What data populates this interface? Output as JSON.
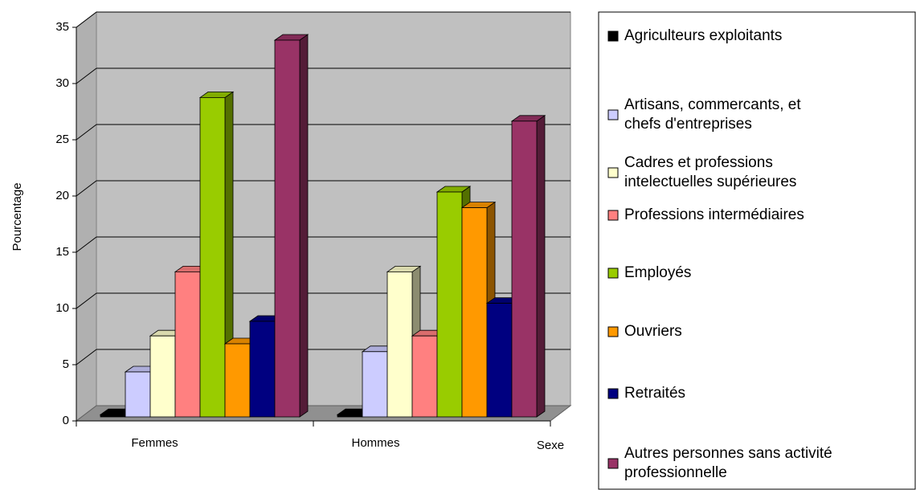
{
  "chart_data": {
    "type": "bar3d",
    "categories": [
      "Femmes",
      "Hommes"
    ],
    "x_label": "Sexe",
    "y_label": "Pourcentage",
    "ylim": [
      0,
      35
    ],
    "yticks": [
      0,
      5,
      10,
      15,
      20,
      25,
      30,
      35
    ],
    "grid": true,
    "legend": "right",
    "series": [
      {
        "name": "Agriculteurs exploitants",
        "color": "#000000",
        "values": [
          0.2,
          0.2
        ]
      },
      {
        "name": "Artisans, commercants, et chefs d'entreprises",
        "color": "#ccccff",
        "values": [
          4,
          5.8
        ]
      },
      {
        "name": "Cadres et professions intelectuelles supérieures",
        "color": "#ffffcc",
        "values": [
          7.2,
          12.9
        ]
      },
      {
        "name": "Professions intermédiaires",
        "color": "#ff8080",
        "values": [
          12.9,
          7.2
        ]
      },
      {
        "name": "Employés",
        "color": "#99cc00",
        "values": [
          28.4,
          20
        ]
      },
      {
        "name": "Ouvriers",
        "color": "#ff9900",
        "values": [
          6.5,
          18.6
        ]
      },
      {
        "name": "Retraités",
        "color": "#000080",
        "values": [
          8.5,
          10.1
        ]
      },
      {
        "name": "Autres personnes sans activité professionnelle",
        "color": "#993366",
        "values": [
          33.5,
          26.3
        ]
      }
    ]
  }
}
